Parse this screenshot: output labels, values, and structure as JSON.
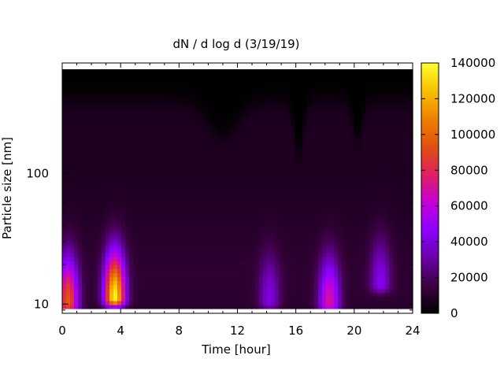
{
  "chart_data": {
    "type": "heatmap",
    "title": "dN / d log d (3/19/19)",
    "xlabel": "Time [hour]",
    "ylabel": "Particle size [nm]",
    "x_range": [
      0,
      24
    ],
    "x_ticks": [
      0,
      4,
      8,
      12,
      16,
      20,
      24
    ],
    "y_scale": "log",
    "y_range": [
      8.5,
      700
    ],
    "y_ticks": [
      10,
      100
    ],
    "colorbar": {
      "range": [
        0,
        140000
      ],
      "ticks": [
        0,
        20000,
        40000,
        60000,
        80000,
        100000,
        120000,
        140000
      ],
      "palette": [
        "#000000",
        "#3a0040",
        "#6a00a8",
        "#8c00ff",
        "#c400d8",
        "#e02060",
        "#e05010",
        "#f08000",
        "#f8c000",
        "#ffff30"
      ]
    },
    "series": [
      {
        "time": [
          0,
          0.5,
          1,
          1.5,
          2,
          2.5,
          3,
          3.5,
          4,
          4.5,
          5,
          5.5,
          6,
          7,
          8,
          9,
          10,
          11,
          12,
          12.5,
          13,
          13.5,
          14,
          14.5,
          15,
          15.5,
          16,
          16.5,
          17,
          17.5,
          18,
          18.5,
          19,
          19.5,
          20,
          20.5,
          21,
          21.5,
          22,
          22.5,
          23,
          23.5,
          24
        ]
      }
    ],
    "modes": [
      {
        "t": 0.4,
        "d": 10,
        "peak": 85000
      },
      {
        "t": 3.6,
        "d": 11,
        "peak": 125000
      },
      {
        "t": 14.2,
        "d": 10.5,
        "peak": 30000
      },
      {
        "t": 18.3,
        "d": 10,
        "peak": 60000
      },
      {
        "t": 21.8,
        "d": 14,
        "peak": 32000
      }
    ]
  }
}
